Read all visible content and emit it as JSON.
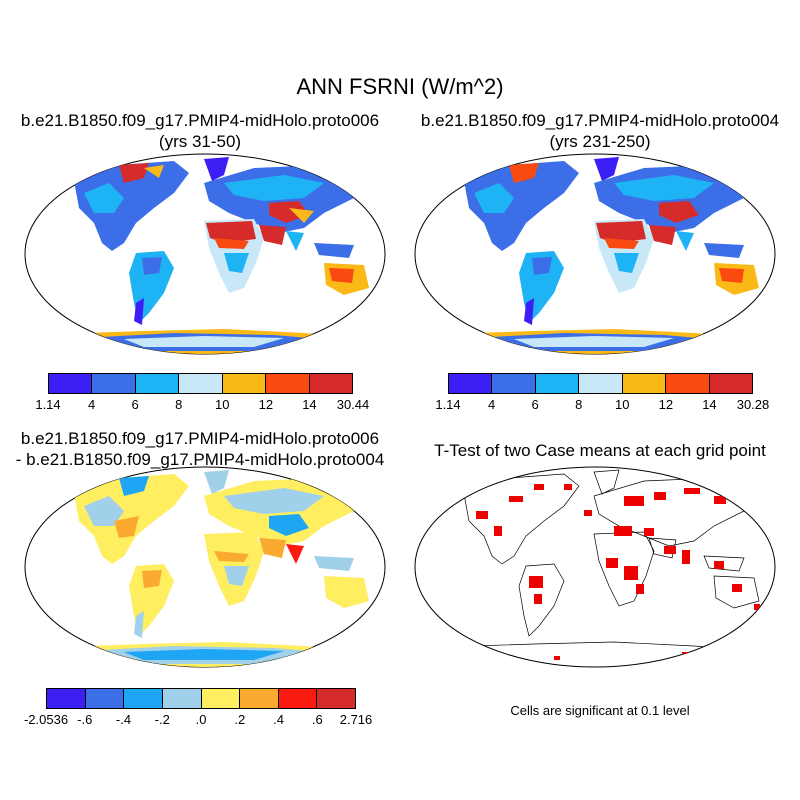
{
  "main_title": "ANN FSRNI (W/m^2)",
  "panels": [
    {
      "title_line1": "b.e21.B1850.f09_g17.PMIP4-midHolo.proto006",
      "title_line2": "(yrs 31-50)"
    },
    {
      "title_line1": "b.e21.B1850.f09_g17.PMIP4-midHolo.proto004",
      "title_line2": "(yrs 231-250)"
    },
    {
      "title_line1": "b.e21.B1850.f09_g17.PMIP4-midHolo.proto006",
      "title_line2": "- b.e21.B1850.f09_g17.PMIP4-midHolo.proto004"
    },
    {
      "title_line1": "T-Test of two Case means at each grid point"
    }
  ],
  "colorbars": [
    {
      "colors": [
        "#3b1ff5",
        "#3c6ee8",
        "#1eb3f5",
        "#c8e8f8",
        "#fbb917",
        "#fb4a10",
        "#d52b2b"
      ],
      "labels": [
        "1.14",
        "4",
        "6",
        "8",
        "10",
        "12",
        "14",
        "30.44"
      ]
    },
    {
      "colors": [
        "#3b1ff5",
        "#3c6ee8",
        "#1eb3f5",
        "#c8e8f8",
        "#fbb917",
        "#fb4a10",
        "#d52b2b"
      ],
      "labels": [
        "1.14",
        "4",
        "6",
        "8",
        "10",
        "12",
        "14",
        "30.28"
      ]
    },
    {
      "colors": [
        "#3b1ff5",
        "#3c6ee8",
        "#1ea6f5",
        "#a0d0ea",
        "#ffee60",
        "#fbaa30",
        "#fb1a10",
        "#d52b2b"
      ],
      "labels": [
        "-2.0536",
        "-.6",
        "-.4",
        "-.2",
        ".0",
        ".2",
        ".4",
        ".6",
        "2.716"
      ]
    }
  ],
  "significance_note": "Cells are significant at 0.1 level",
  "map_colors": {
    "ocean": "#ffffff",
    "sig": "#ee0000"
  }
}
